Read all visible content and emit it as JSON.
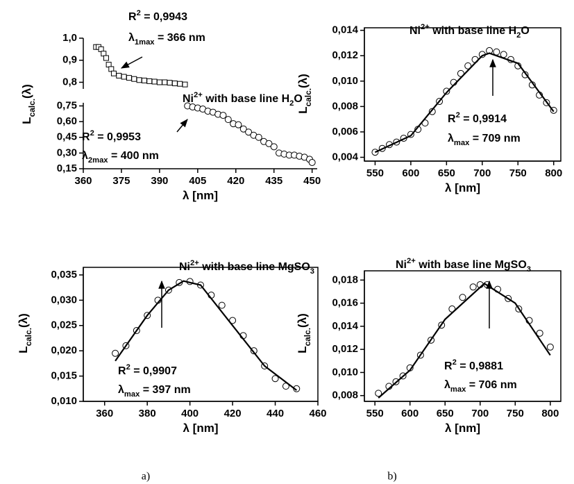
{
  "chart_data": [
    {
      "type": "broken-scatter",
      "xlabel": [
        {
          "t": "λ [nm]"
        }
      ],
      "ylabel": [
        {
          "t": "L"
        },
        {
          "t": "calc.",
          "sub": true
        },
        {
          "t": "(λ)"
        }
      ],
      "xlim": [
        360,
        452
      ],
      "xticks": [
        360,
        375,
        390,
        405,
        420,
        435,
        450
      ],
      "annotations": [
        [
          {
            "t": "R"
          },
          {
            "t": "2",
            "sup": true
          },
          {
            "t": " = 0,9943"
          }
        ],
        [
          {
            "t": "λ"
          },
          {
            "t": "1max",
            "sub": true
          },
          {
            "t": " = 366 nm"
          }
        ],
        [
          {
            "t": "Ni"
          },
          {
            "t": "2+",
            "sup": true
          },
          {
            "t": " with base line H"
          },
          {
            "t": "2",
            "sub": true
          },
          {
            "t": "O"
          }
        ],
        [
          {
            "t": "R"
          },
          {
            "t": "2",
            "sup": true
          },
          {
            "t": " = 0,9953"
          }
        ],
        [
          {
            "t": "λ"
          },
          {
            "t": "2max",
            "sub": true
          },
          {
            "t": " = 400 nm"
          }
        ]
      ],
      "segments": [
        {
          "ylim": [
            0.77,
            1.0
          ],
          "yticks": [
            {
              "value": 0.8,
              "label": "0,8"
            },
            {
              "value": 0.9,
              "label": "0,9"
            },
            {
              "value": 1.0,
              "label": "1,0"
            }
          ],
          "series": [
            {
              "marker": "square",
              "color": "#000000",
              "x": [
                365,
                366,
                367,
                368,
                369,
                370,
                371,
                372,
                374,
                376,
                378,
                380,
                382,
                384,
                386,
                388,
                390,
                392,
                394,
                396,
                398,
                400
              ],
              "values": [
                0.96,
                0.96,
                0.95,
                0.93,
                0.91,
                0.88,
                0.86,
                0.84,
                0.83,
                0.825,
                0.82,
                0.815,
                0.81,
                0.808,
                0.805,
                0.803,
                0.8,
                0.8,
                0.798,
                0.795,
                0.793,
                0.79
              ]
            }
          ]
        },
        {
          "ylim": [
            0.15,
            0.78
          ],
          "yticks": [
            {
              "value": 0.15,
              "label": "0,15"
            },
            {
              "value": 0.3,
              "label": "0,30"
            },
            {
              "value": 0.45,
              "label": "0,45"
            },
            {
              "value": 0.6,
              "label": "0,60"
            },
            {
              "value": 0.75,
              "label": "0,75"
            }
          ],
          "series": [
            {
              "marker": "circle",
              "color": "#000000",
              "x": [
                401,
                403,
                405,
                407,
                409,
                411,
                413,
                415,
                417,
                419,
                421,
                423,
                425,
                427,
                429,
                431,
                433,
                435,
                437,
                439,
                441,
                443,
                445,
                447,
                449,
                450
              ],
              "values": [
                0.75,
                0.74,
                0.73,
                0.72,
                0.7,
                0.69,
                0.67,
                0.66,
                0.62,
                0.58,
                0.57,
                0.53,
                0.5,
                0.47,
                0.45,
                0.41,
                0.39,
                0.36,
                0.3,
                0.29,
                0.28,
                0.28,
                0.27,
                0.26,
                0.24,
                0.21
              ]
            }
          ]
        }
      ]
    },
    {
      "type": "scatter-fit",
      "title": [
        {
          "t": "Ni"
        },
        {
          "t": "2+",
          "sup": true
        },
        {
          "t": " with base line H"
        },
        {
          "t": "2",
          "sub": true
        },
        {
          "t": "O"
        }
      ],
      "xlabel": [
        {
          "t": "λ [nm]"
        }
      ],
      "ylabel": [
        {
          "t": "L"
        },
        {
          "t": "calc.",
          "sub": true
        },
        {
          "t": "(λ)"
        }
      ],
      "xlim": [
        535,
        810
      ],
      "xticks": [
        550,
        600,
        650,
        700,
        750,
        800
      ],
      "ylim": [
        0.0037,
        0.0142
      ],
      "yticks": [
        {
          "value": 0.004,
          "label": "0,004"
        },
        {
          "value": 0.006,
          "label": "0,006"
        },
        {
          "value": 0.008,
          "label": "0,008"
        },
        {
          "value": 0.01,
          "label": "0,010"
        },
        {
          "value": 0.012,
          "label": "0,012"
        },
        {
          "value": 0.014,
          "label": "0,014"
        }
      ],
      "annotations": [
        [
          {
            "t": "R"
          },
          {
            "t": "2",
            "sup": true
          },
          {
            "t": " = 0,9914"
          }
        ],
        [
          {
            "t": "λ"
          },
          {
            "t": "max",
            "sub": true
          },
          {
            "t": " = 709 nm"
          }
        ]
      ],
      "series": [
        {
          "marker": "circle",
          "color": "#000000",
          "x": [
            550,
            560,
            570,
            580,
            590,
            600,
            610,
            620,
            630,
            640,
            650,
            660,
            670,
            680,
            690,
            700,
            710,
            720,
            730,
            740,
            750,
            760,
            770,
            780,
            790,
            800
          ],
          "values": [
            0.0044,
            0.0047,
            0.005,
            0.0052,
            0.0055,
            0.0058,
            0.0062,
            0.0067,
            0.0076,
            0.0084,
            0.0092,
            0.0099,
            0.0106,
            0.0112,
            0.0117,
            0.0121,
            0.0124,
            0.0123,
            0.0121,
            0.0117,
            0.0112,
            0.0105,
            0.0097,
            0.0089,
            0.0083,
            0.0077
          ]
        },
        {
          "kind": "line",
          "color": "#000000",
          "x": [
            550,
            600,
            650,
            700,
            710,
            750,
            800
          ],
          "values": [
            0.0044,
            0.0057,
            0.0091,
            0.012,
            0.0122,
            0.0114,
            0.0076
          ]
        }
      ]
    },
    {
      "type": "scatter-fit",
      "title": [
        {
          "t": "Ni"
        },
        {
          "t": "2+",
          "sup": true
        },
        {
          "t": " with base line MgSO"
        },
        {
          "t": "3",
          "sub": true
        }
      ],
      "xlabel": [
        {
          "t": "λ [nm]"
        }
      ],
      "ylabel": [
        {
          "t": "L"
        },
        {
          "t": "calc.",
          "sub": true
        },
        {
          "t": "(λ)"
        }
      ],
      "xlim": [
        350,
        460
      ],
      "xticks": [
        360,
        380,
        400,
        420,
        440,
        460
      ],
      "ylim": [
        0.01,
        0.0365
      ],
      "yticks": [
        {
          "value": 0.01,
          "label": "0,010"
        },
        {
          "value": 0.015,
          "label": "0,015"
        },
        {
          "value": 0.02,
          "label": "0,020"
        },
        {
          "value": 0.025,
          "label": "0,025"
        },
        {
          "value": 0.03,
          "label": "0,030"
        },
        {
          "value": 0.035,
          "label": "0,035"
        }
      ],
      "annotations": [
        [
          {
            "t": "R"
          },
          {
            "t": "2",
            "sup": true
          },
          {
            "t": " = 0,9907"
          }
        ],
        [
          {
            "t": "λ"
          },
          {
            "t": "max",
            "sub": true
          },
          {
            "t": " = 397 nm"
          }
        ]
      ],
      "series": [
        {
          "marker": "circle",
          "color": "#000000",
          "x": [
            365,
            370,
            375,
            380,
            385,
            390,
            395,
            400,
            405,
            410,
            415,
            420,
            425,
            430,
            435,
            440,
            445,
            450
          ],
          "values": [
            0.0195,
            0.021,
            0.024,
            0.027,
            0.03,
            0.032,
            0.0335,
            0.0337,
            0.033,
            0.031,
            0.029,
            0.026,
            0.023,
            0.02,
            0.017,
            0.0145,
            0.013,
            0.0125
          ]
        },
        {
          "kind": "line",
          "color": "#000000",
          "x": [
            365,
            380,
            390,
            397,
            405,
            420,
            435,
            450
          ],
          "values": [
            0.018,
            0.027,
            0.032,
            0.0338,
            0.033,
            0.025,
            0.017,
            0.0122
          ]
        }
      ]
    },
    {
      "type": "scatter-fit",
      "title": [
        {
          "t": "Ni"
        },
        {
          "t": "2+",
          "sup": true
        },
        {
          "t": " with base line MgSO"
        },
        {
          "t": "3",
          "sub": true
        }
      ],
      "xlabel": [
        {
          "t": "λ [nm]"
        }
      ],
      "ylabel": [
        {
          "t": "L"
        },
        {
          "t": "calc.",
          "sub": true
        },
        {
          "t": "(λ)"
        }
      ],
      "xlim": [
        535,
        815
      ],
      "xticks": [
        550,
        600,
        650,
        700,
        750,
        800
      ],
      "ylim": [
        0.0075,
        0.0188
      ],
      "yticks": [
        {
          "value": 0.008,
          "label": "0,008"
        },
        {
          "value": 0.01,
          "label": "0,010"
        },
        {
          "value": 0.012,
          "label": "0,012"
        },
        {
          "value": 0.014,
          "label": "0,014"
        },
        {
          "value": 0.016,
          "label": "0,016"
        },
        {
          "value": 0.018,
          "label": "0,018"
        }
      ],
      "annotations": [
        [
          {
            "t": "R"
          },
          {
            "t": "2",
            "sup": true
          },
          {
            "t": " = 0,9881"
          }
        ],
        [
          {
            "t": "λ"
          },
          {
            "t": "max",
            "sub": true
          },
          {
            "t": " = 706 nm"
          }
        ]
      ],
      "series": [
        {
          "marker": "circle",
          "color": "#000000",
          "x": [
            555,
            570,
            580,
            590,
            600,
            615,
            630,
            645,
            660,
            675,
            690,
            700,
            710,
            725,
            740,
            755,
            770,
            785,
            800
          ],
          "values": [
            0.0082,
            0.0088,
            0.0092,
            0.0097,
            0.0104,
            0.0115,
            0.0128,
            0.0141,
            0.0155,
            0.0165,
            0.0174,
            0.0176,
            0.0176,
            0.0172,
            0.0164,
            0.0155,
            0.0145,
            0.0134,
            0.0122
          ]
        },
        {
          "kind": "line",
          "color": "#000000",
          "x": [
            555,
            600,
            650,
            706,
            750,
            800
          ],
          "values": [
            0.0078,
            0.0102,
            0.0146,
            0.0177,
            0.016,
            0.0115
          ]
        }
      ]
    }
  ],
  "captions": [
    "a)",
    "b)"
  ]
}
